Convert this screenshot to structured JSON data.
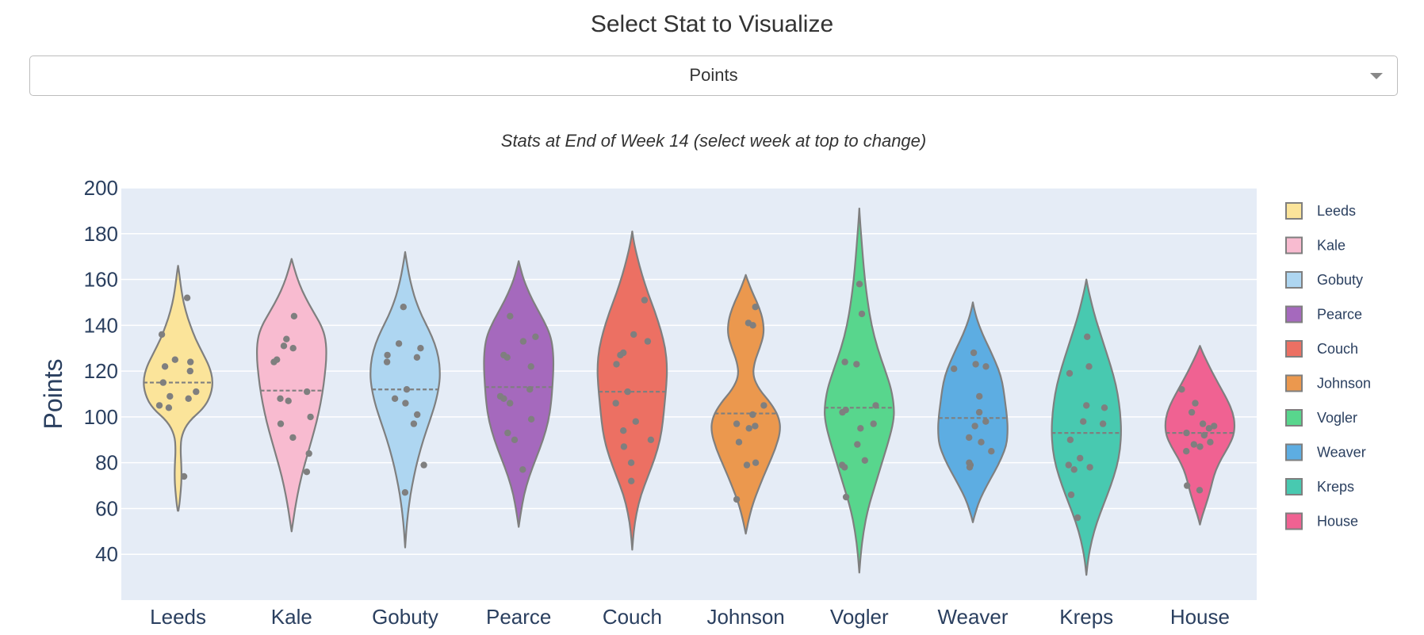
{
  "page": {
    "heading": "Select Stat to Visualize",
    "dropdown": {
      "selected": "Points",
      "icon": "chevron-down-icon"
    }
  },
  "chart_data": {
    "type": "violin",
    "title": "Stats at End of Week 14 (select week at top to change)",
    "xlabel": "",
    "ylabel": "Points",
    "ylim": [
      20,
      200
    ],
    "yticks": [
      40,
      60,
      80,
      100,
      120,
      140,
      160,
      180,
      200
    ],
    "grid": true,
    "legend_position": "right",
    "categories": [
      "Leeds",
      "Kale",
      "Gobuty",
      "Pearce",
      "Couch",
      "Johnson",
      "Vogler",
      "Weaver",
      "Kreps",
      "House"
    ],
    "series": [
      {
        "name": "Leeds",
        "color": "#fbe49a",
        "mean": 115,
        "violin_min": 59,
        "violin_max": 166,
        "violin_profile": [
          [
            59,
            0.01
          ],
          [
            62,
            0.04
          ],
          [
            68,
            0.08
          ],
          [
            74,
            0.1
          ],
          [
            80,
            0.09
          ],
          [
            86,
            0.07
          ],
          [
            92,
            0.1
          ],
          [
            98,
            0.3
          ],
          [
            104,
            0.75
          ],
          [
            110,
            0.95
          ],
          [
            116,
            1.0
          ],
          [
            122,
            0.9
          ],
          [
            128,
            0.7
          ],
          [
            134,
            0.5
          ],
          [
            140,
            0.35
          ],
          [
            146,
            0.22
          ],
          [
            152,
            0.13
          ],
          [
            158,
            0.07
          ],
          [
            163,
            0.03
          ],
          [
            166,
            0.0
          ]
        ],
        "points": [
          152,
          136,
          125,
          124,
          122,
          120,
          115,
          111,
          109,
          108,
          105,
          104,
          74
        ]
      },
      {
        "name": "Kale",
        "color": "#f8bbd0",
        "mean": 111.5,
        "violin_min": 50,
        "violin_max": 169,
        "violin_profile": [
          [
            50,
            0.0
          ],
          [
            55,
            0.05
          ],
          [
            62,
            0.12
          ],
          [
            70,
            0.22
          ],
          [
            78,
            0.35
          ],
          [
            86,
            0.5
          ],
          [
            94,
            0.65
          ],
          [
            102,
            0.78
          ],
          [
            110,
            0.88
          ],
          [
            118,
            0.95
          ],
          [
            126,
            1.0
          ],
          [
            134,
            0.98
          ],
          [
            140,
            0.85
          ],
          [
            146,
            0.62
          ],
          [
            152,
            0.4
          ],
          [
            158,
            0.22
          ],
          [
            164,
            0.09
          ],
          [
            169,
            0.0
          ]
        ],
        "points": [
          144,
          134,
          131,
          130,
          125,
          124,
          111,
          108,
          107,
          100,
          97,
          91,
          84,
          76
        ]
      },
      {
        "name": "Gobuty",
        "color": "#aed6f1",
        "mean": 112,
        "violin_min": 43,
        "violin_max": 172,
        "violin_profile": [
          [
            43,
            0.0
          ],
          [
            50,
            0.03
          ],
          [
            58,
            0.08
          ],
          [
            66,
            0.15
          ],
          [
            74,
            0.25
          ],
          [
            82,
            0.37
          ],
          [
            90,
            0.52
          ],
          [
            98,
            0.7
          ],
          [
            106,
            0.87
          ],
          [
            114,
            0.98
          ],
          [
            120,
            1.0
          ],
          [
            126,
            0.96
          ],
          [
            132,
            0.85
          ],
          [
            138,
            0.68
          ],
          [
            144,
            0.48
          ],
          [
            150,
            0.32
          ],
          [
            156,
            0.2
          ],
          [
            162,
            0.11
          ],
          [
            168,
            0.04
          ],
          [
            172,
            0.0
          ]
        ],
        "points": [
          148,
          132,
          130,
          127,
          126,
          124,
          112,
          108,
          106,
          101,
          97,
          79,
          67
        ]
      },
      {
        "name": "Pearce",
        "color": "#a569bd",
        "mean": 113,
        "violin_min": 52,
        "violin_max": 168,
        "violin_profile": [
          [
            52,
            0.0
          ],
          [
            58,
            0.06
          ],
          [
            66,
            0.15
          ],
          [
            74,
            0.3
          ],
          [
            82,
            0.5
          ],
          [
            90,
            0.7
          ],
          [
            98,
            0.85
          ],
          [
            106,
            0.93
          ],
          [
            114,
            0.97
          ],
          [
            122,
            1.0
          ],
          [
            130,
            0.98
          ],
          [
            136,
            0.9
          ],
          [
            142,
            0.72
          ],
          [
            148,
            0.5
          ],
          [
            154,
            0.3
          ],
          [
            160,
            0.14
          ],
          [
            165,
            0.05
          ],
          [
            168,
            0.0
          ]
        ],
        "points": [
          144,
          135,
          133,
          127,
          126,
          122,
          112,
          109,
          108,
          106,
          99,
          93,
          90,
          77
        ]
      },
      {
        "name": "Couch",
        "color": "#ec7063",
        "mean": 111,
        "violin_min": 42,
        "violin_max": 181,
        "violin_profile": [
          [
            42,
            0.0
          ],
          [
            50,
            0.04
          ],
          [
            58,
            0.12
          ],
          [
            66,
            0.25
          ],
          [
            74,
            0.45
          ],
          [
            82,
            0.65
          ],
          [
            90,
            0.8
          ],
          [
            98,
            0.88
          ],
          [
            106,
            0.93
          ],
          [
            114,
            0.98
          ],
          [
            122,
            1.0
          ],
          [
            130,
            0.95
          ],
          [
            138,
            0.82
          ],
          [
            146,
            0.65
          ],
          [
            154,
            0.45
          ],
          [
            162,
            0.28
          ],
          [
            170,
            0.14
          ],
          [
            176,
            0.05
          ],
          [
            181,
            0.0
          ]
        ],
        "points": [
          151,
          136,
          133,
          128,
          127,
          123,
          111,
          106,
          98,
          94,
          90,
          87,
          80,
          72
        ]
      },
      {
        "name": "Johnson",
        "color": "#eb984e",
        "mean": 101.5,
        "violin_min": 49,
        "violin_max": 162,
        "violin_profile": [
          [
            49,
            0.0
          ],
          [
            55,
            0.08
          ],
          [
            62,
            0.2
          ],
          [
            70,
            0.4
          ],
          [
            78,
            0.62
          ],
          [
            86,
            0.85
          ],
          [
            94,
            1.0
          ],
          [
            100,
            0.95
          ],
          [
            106,
            0.72
          ],
          [
            112,
            0.38
          ],
          [
            118,
            0.2
          ],
          [
            124,
            0.25
          ],
          [
            130,
            0.4
          ],
          [
            136,
            0.52
          ],
          [
            142,
            0.5
          ],
          [
            148,
            0.38
          ],
          [
            154,
            0.2
          ],
          [
            159,
            0.07
          ],
          [
            162,
            0.0
          ]
        ],
        "points": [
          148,
          141,
          140,
          105,
          101,
          97,
          96,
          95,
          89,
          80,
          79,
          64
        ]
      },
      {
        "name": "Vogler",
        "color": "#58d68d",
        "mean": 104,
        "violin_min": 32,
        "violin_max": 191,
        "violin_profile": [
          [
            32,
            0.0
          ],
          [
            40,
            0.04
          ],
          [
            50,
            0.12
          ],
          [
            60,
            0.25
          ],
          [
            70,
            0.45
          ],
          [
            80,
            0.65
          ],
          [
            90,
            0.85
          ],
          [
            98,
            0.98
          ],
          [
            104,
            1.0
          ],
          [
            112,
            0.92
          ],
          [
            120,
            0.75
          ],
          [
            130,
            0.52
          ],
          [
            140,
            0.35
          ],
          [
            150,
            0.24
          ],
          [
            160,
            0.16
          ],
          [
            170,
            0.1
          ],
          [
            180,
            0.05
          ],
          [
            186,
            0.02
          ],
          [
            191,
            0.0
          ]
        ],
        "points": [
          158,
          145,
          124,
          123,
          105,
          103,
          102,
          97,
          95,
          88,
          81,
          79,
          78,
          65
        ]
      },
      {
        "name": "Weaver",
        "color": "#5dade2",
        "mean": 99.5,
        "violin_min": 54,
        "violin_max": 150,
        "violin_profile": [
          [
            54,
            0.0
          ],
          [
            58,
            0.07
          ],
          [
            64,
            0.2
          ],
          [
            70,
            0.4
          ],
          [
            76,
            0.62
          ],
          [
            82,
            0.82
          ],
          [
            88,
            0.97
          ],
          [
            94,
            1.0
          ],
          [
            100,
            0.98
          ],
          [
            106,
            0.93
          ],
          [
            112,
            0.88
          ],
          [
            118,
            0.8
          ],
          [
            124,
            0.65
          ],
          [
            130,
            0.47
          ],
          [
            136,
            0.28
          ],
          [
            142,
            0.13
          ],
          [
            147,
            0.04
          ],
          [
            150,
            0.0
          ]
        ],
        "points": [
          128,
          123,
          122,
          121,
          109,
          102,
          98,
          96,
          91,
          89,
          85,
          80,
          79,
          78
        ]
      },
      {
        "name": "Kreps",
        "color": "#48c9b0",
        "mean": 93,
        "violin_min": 31,
        "violin_max": 160,
        "violin_profile": [
          [
            31,
            0.0
          ],
          [
            38,
            0.05
          ],
          [
            46,
            0.15
          ],
          [
            54,
            0.3
          ],
          [
            62,
            0.5
          ],
          [
            70,
            0.7
          ],
          [
            78,
            0.87
          ],
          [
            86,
            0.97
          ],
          [
            94,
            1.0
          ],
          [
            102,
            0.97
          ],
          [
            110,
            0.9
          ],
          [
            118,
            0.78
          ],
          [
            126,
            0.62
          ],
          [
            134,
            0.45
          ],
          [
            142,
            0.28
          ],
          [
            150,
            0.14
          ],
          [
            156,
            0.05
          ],
          [
            160,
            0.0
          ]
        ],
        "points": [
          135,
          122,
          119,
          105,
          104,
          98,
          97,
          90,
          82,
          79,
          78,
          77,
          66,
          56
        ]
      },
      {
        "name": "House",
        "color": "#f06292",
        "mean": 93,
        "violin_min": 53,
        "violin_max": 131,
        "violin_profile": [
          [
            53,
            0.0
          ],
          [
            57,
            0.07
          ],
          [
            62,
            0.18
          ],
          [
            67,
            0.28
          ],
          [
            72,
            0.36
          ],
          [
            77,
            0.46
          ],
          [
            82,
            0.62
          ],
          [
            87,
            0.82
          ],
          [
            92,
            0.97
          ],
          [
            97,
            1.0
          ],
          [
            102,
            0.94
          ],
          [
            107,
            0.8
          ],
          [
            112,
            0.62
          ],
          [
            117,
            0.44
          ],
          [
            122,
            0.27
          ],
          [
            127,
            0.11
          ],
          [
            131,
            0.0
          ]
        ],
        "points": [
          112,
          106,
          102,
          97,
          96,
          95,
          93,
          92,
          89,
          88,
          87,
          85,
          70,
          68
        ]
      }
    ]
  }
}
